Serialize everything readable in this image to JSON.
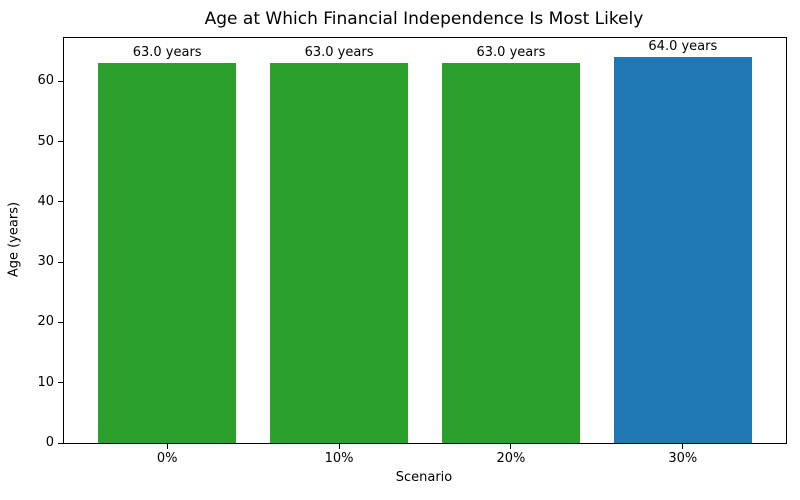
{
  "figure": {
    "background_color": "#ffffff",
    "spine_color": "#000000",
    "text_color": "#000000"
  },
  "chart_data": {
    "type": "bar",
    "title": "Age at Which Financial Independence Is Most Likely",
    "xlabel": "Scenario",
    "ylabel": "Age (years)",
    "categories": [
      "0%",
      "10%",
      "20%",
      "30%"
    ],
    "values": [
      63.0,
      63.0,
      63.0,
      64.0
    ],
    "bar_labels": [
      "63.0 years",
      "63.0 years",
      "63.0 years",
      "64.0 years"
    ],
    "bar_colors": [
      "#2ca02c",
      "#2ca02c",
      "#2ca02c",
      "#1f77b4"
    ],
    "ylim": [
      0,
      67.2
    ],
    "yticks": [
      0,
      10,
      20,
      30,
      40,
      50,
      60
    ],
    "bar_width_fraction": 0.8,
    "edge_padding": 0.6,
    "grid": false,
    "legend_position": "none"
  }
}
